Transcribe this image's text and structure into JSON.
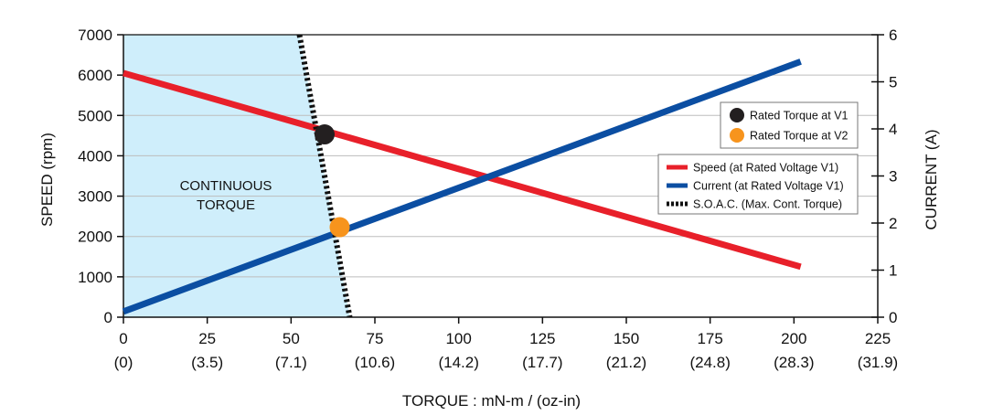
{
  "chart_data": {
    "type": "line",
    "xlabel": "TORQUE : mN-m / (oz-in)",
    "ylabel_left": "SPEED (rpm)",
    "ylabel_right": "CURRENT (A)",
    "xlim": [
      0,
      225
    ],
    "ylim_left": [
      0,
      7000
    ],
    "ylim_right": [
      0,
      6
    ],
    "grid": true,
    "x_ticks": [
      {
        "value": 0,
        "label": "0",
        "sublabel": "(0)"
      },
      {
        "value": 25,
        "label": "25",
        "sublabel": "(3.5)"
      },
      {
        "value": 50,
        "label": "50",
        "sublabel": "(7.1)"
      },
      {
        "value": 75,
        "label": "75",
        "sublabel": "(10.6)"
      },
      {
        "value": 100,
        "label": "100",
        "sublabel": "(14.2)"
      },
      {
        "value": 125,
        "label": "125",
        "sublabel": "(17.7)"
      },
      {
        "value": 150,
        "label": "150",
        "sublabel": "(21.2)"
      },
      {
        "value": 175,
        "label": "175",
        "sublabel": "(24.8)"
      },
      {
        "value": 200,
        "label": "200",
        "sublabel": "(28.3)"
      },
      {
        "value": 225,
        "label": "225",
        "sublabel": "(31.9)"
      }
    ],
    "y_left_ticks": [
      0,
      1000,
      2000,
      3000,
      4000,
      5000,
      6000,
      7000
    ],
    "y_right_ticks": [
      0,
      1,
      2,
      3,
      4,
      5,
      6
    ],
    "series": [
      {
        "name": "Speed (at Rated Voltage V1)",
        "axis": "left",
        "color": "#e8202a",
        "style": "solid",
        "x": [
          0,
          202
        ],
        "y": [
          6050,
          1250
        ]
      },
      {
        "name": "Current (at Rated Voltage V1)",
        "axis": "right",
        "color": "#0b4ea2",
        "style": "solid",
        "x": [
          0,
          202
        ],
        "y": [
          0.12,
          5.43
        ]
      },
      {
        "name": "S.O.A.C. (Max. Cont. Torque)",
        "axis": "left",
        "color": "#111111",
        "style": "dotted",
        "x": [
          52.5,
          67.5
        ],
        "y": [
          7000,
          0
        ]
      }
    ],
    "points": [
      {
        "name": "Rated Torque at V1",
        "axis": "left",
        "color": "#231f20",
        "x": 60,
        "y": 4530
      },
      {
        "name": "Rated Torque at V2",
        "axis": "left",
        "color": "#f7941d",
        "x": 64.5,
        "y": 2230
      }
    ],
    "region": {
      "label_lines": [
        "CONTINUOUS",
        "TORQUE"
      ],
      "color": "#cfeefb"
    },
    "legend_points_placement": "right-upper",
    "legend_lines_placement": "right-middle"
  }
}
